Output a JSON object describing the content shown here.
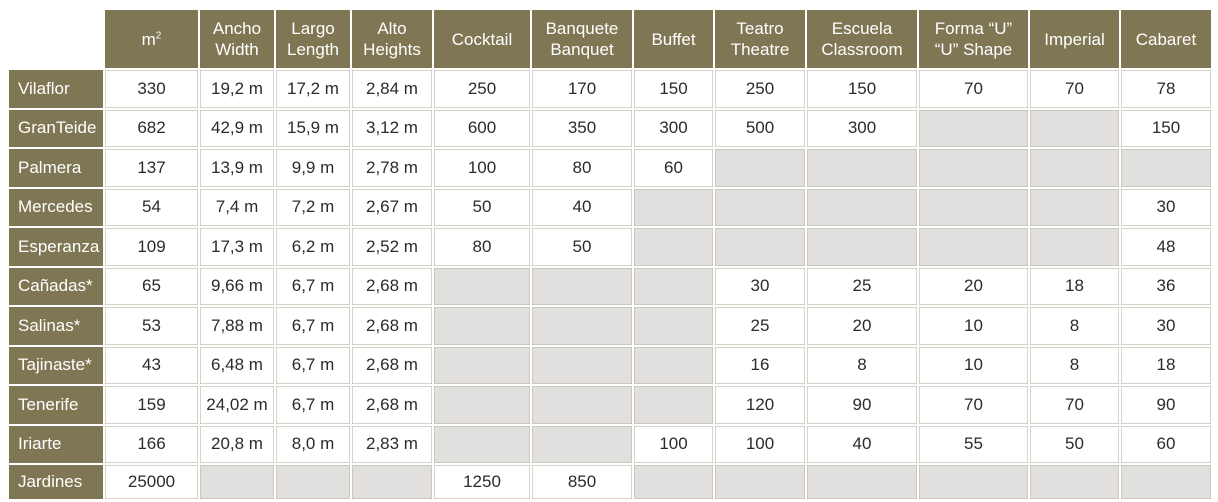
{
  "headers": [
    {
      "line1": "m",
      "sup": "2",
      "line2": ""
    },
    {
      "line1": "Ancho",
      "line2": "Width"
    },
    {
      "line1": "Largo",
      "line2": "Length"
    },
    {
      "line1": "Alto",
      "line2": "Heights"
    },
    {
      "line1": "Cocktail",
      "line2": ""
    },
    {
      "line1": "Banquete",
      "line2": "Banquet"
    },
    {
      "line1": "Buffet",
      "line2": ""
    },
    {
      "line1": "Teatro",
      "line2": "Theatre"
    },
    {
      "line1": "Escuela",
      "line2": "Classroom"
    },
    {
      "line1": "Forma “U”",
      "line2": "“U” Shape"
    },
    {
      "line1": "Imperial",
      "line2": ""
    },
    {
      "line1": "Cabaret",
      "line2": ""
    }
  ],
  "rows": [
    {
      "name": "Vilaflor",
      "cells": [
        "330",
        "19,2 m",
        "17,2 m",
        "2,84 m",
        "250",
        "170",
        "150",
        "250",
        "150",
        "70",
        "70",
        "78"
      ]
    },
    {
      "name": "GranTeide",
      "cells": [
        "682",
        "42,9 m",
        "15,9 m",
        "3,12 m",
        "600",
        "350",
        "300",
        "500",
        "300",
        "",
        "",
        "150"
      ]
    },
    {
      "name": "Palmera",
      "cells": [
        "137",
        "13,9 m",
        "9,9 m",
        "2,78 m",
        "100",
        "80",
        "60",
        "",
        "",
        "",
        "",
        ""
      ]
    },
    {
      "name": "Mercedes",
      "cells": [
        "54",
        "7,4 m",
        "7,2 m",
        "2,67 m",
        "50",
        "40",
        "",
        "",
        "",
        "",
        "",
        "30"
      ]
    },
    {
      "name": "Esperanza",
      "cells": [
        "109",
        "17,3 m",
        "6,2 m",
        "2,52 m",
        "80",
        "50",
        "",
        "",
        "",
        "",
        "",
        "48"
      ]
    },
    {
      "name": "Cañadas*",
      "cells": [
        "65",
        "9,66 m",
        "6,7 m",
        "2,68 m",
        "",
        "",
        "",
        "30",
        "25",
        "20",
        "18",
        "36"
      ]
    },
    {
      "name": "Salinas*",
      "cells": [
        "53",
        "7,88 m",
        "6,7 m",
        "2,68 m",
        "",
        "",
        "",
        "25",
        "20",
        "10",
        "8",
        "30"
      ]
    },
    {
      "name": "Tajinaste*",
      "cells": [
        "43",
        "6,48 m",
        "6,7 m",
        "2,68 m",
        "",
        "",
        "",
        "16",
        "8",
        "10",
        "8",
        "18"
      ]
    },
    {
      "name": "Tenerife",
      "cells": [
        "159",
        "24,02 m",
        "6,7 m",
        "2,68 m",
        "",
        "",
        "",
        "120",
        "90",
        "70",
        "70",
        "90"
      ]
    },
    {
      "name": "Iriarte",
      "cells": [
        "166",
        "20,8 m",
        "8,0 m",
        "2,83 m",
        "",
        "",
        "100",
        "100",
        "40",
        "55",
        "50",
        "60"
      ]
    },
    {
      "name": "Jardines",
      "cells": [
        "25000",
        "",
        "",
        "",
        "1250",
        "850",
        "",
        "",
        "",
        "",
        "",
        ""
      ]
    }
  ]
}
